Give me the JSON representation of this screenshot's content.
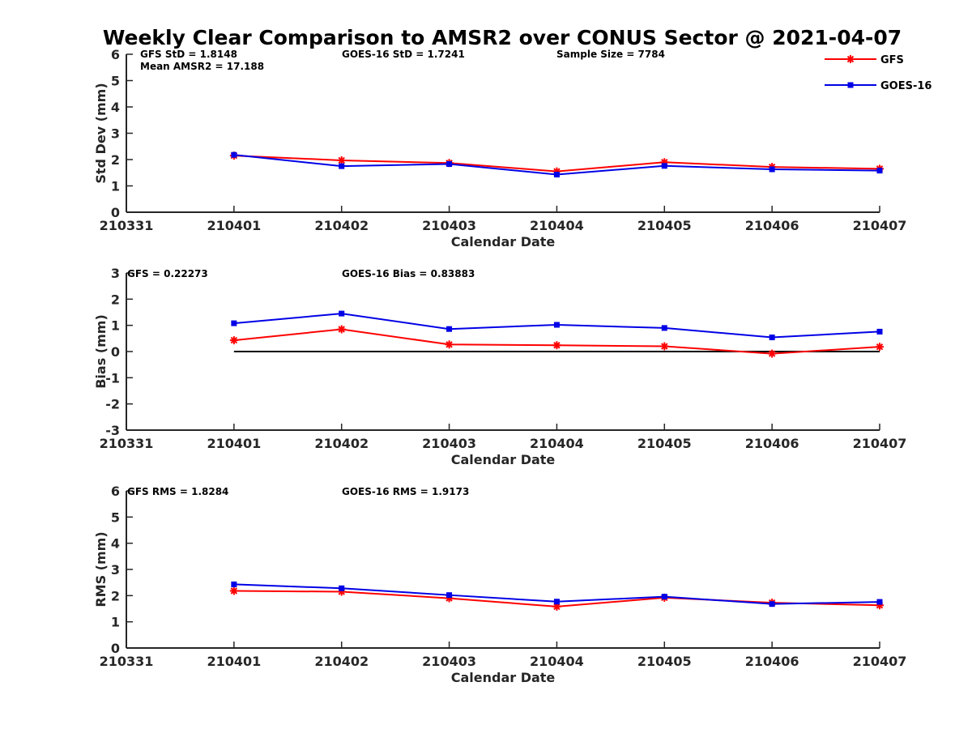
{
  "title": "Weekly Clear Comparison to AMSR2 over CONUS Sector @ 2021-04-07",
  "colors": {
    "gfs": "#ff0000",
    "goes": "#0000e6",
    "zero_line": "#000000",
    "axis": "#262626"
  },
  "legend": {
    "placement": "top-right",
    "items": [
      {
        "name": "GFS",
        "color": "#ff0000",
        "marker": "asterisk"
      },
      {
        "name": "GOES-16",
        "color": "#0000e6",
        "marker": "square"
      }
    ]
  },
  "chart_data": [
    {
      "type": "line",
      "xlabel": "Calendar Date",
      "ylabel": "Std Dev (mm)",
      "categories": [
        "210331",
        "210401",
        "210402",
        "210403",
        "210404",
        "210405",
        "210406",
        "210407"
      ],
      "ylim": [
        0,
        6
      ],
      "yticks": [
        "0",
        "1",
        "2",
        "3",
        "4",
        "5",
        "6"
      ],
      "annotations": [
        "GFS StD = 1.8148",
        "Mean AMSR2 = 17.188",
        "GOES-16 StD = 1.7241",
        "Sample Size = 7784"
      ],
      "series": [
        {
          "name": "GFS",
          "values": [
            null,
            2.15,
            1.97,
            1.87,
            1.55,
            1.9,
            1.72,
            1.65
          ]
        },
        {
          "name": "GOES-16",
          "values": [
            null,
            2.18,
            1.75,
            1.83,
            1.43,
            1.76,
            1.63,
            1.58
          ]
        }
      ]
    },
    {
      "type": "line",
      "xlabel": "Calendar Date",
      "ylabel": "Bias (mm)",
      "categories": [
        "210331",
        "210401",
        "210402",
        "210403",
        "210404",
        "210405",
        "210406",
        "210407"
      ],
      "ylim": [
        -3,
        3
      ],
      "yticks": [
        "-3",
        "-2",
        "-1",
        "0",
        "1",
        "2",
        "3"
      ],
      "annotations": [
        "GFS = 0.22273",
        "GOES-16 Bias  = 0.83883"
      ],
      "zero_line": true,
      "series": [
        {
          "name": "GFS",
          "values": [
            null,
            0.43,
            0.85,
            0.27,
            0.24,
            0.2,
            -0.08,
            0.18
          ]
        },
        {
          "name": "GOES-16",
          "values": [
            null,
            1.08,
            1.45,
            0.86,
            1.02,
            0.9,
            0.54,
            0.76
          ]
        }
      ]
    },
    {
      "type": "line",
      "xlabel": "Calendar Date",
      "ylabel": "RMS (mm)",
      "categories": [
        "210331",
        "210401",
        "210402",
        "210403",
        "210404",
        "210405",
        "210406",
        "210407"
      ],
      "ylim": [
        0,
        6
      ],
      "yticks": [
        "0",
        "1",
        "2",
        "3",
        "4",
        "5",
        "6"
      ],
      "annotations": [
        "GFS RMS = 1.8284",
        "GOES-16 RMS = 1.9173"
      ],
      "series": [
        {
          "name": "GFS",
          "values": [
            null,
            2.18,
            2.15,
            1.9,
            1.58,
            1.92,
            1.73,
            1.63
          ]
        },
        {
          "name": "GOES-16",
          "values": [
            null,
            2.43,
            2.28,
            2.02,
            1.77,
            1.96,
            1.68,
            1.76
          ]
        }
      ]
    }
  ]
}
